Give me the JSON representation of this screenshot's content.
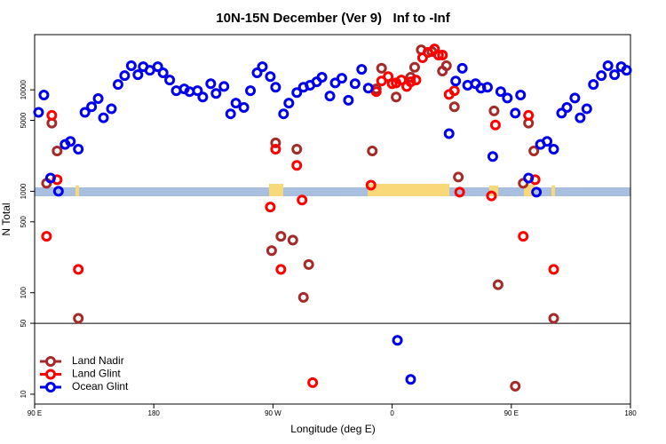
{
  "chart_data": {
    "type": "scatter",
    "title": "10N-15N December (Ver 9)   Inf to -Inf",
    "x_label": "Longitude (deg E)",
    "y_label": "N Total",
    "log_y": true,
    "xlim": [
      90,
      540
    ],
    "xticks": [
      {
        "value": 90,
        "label": "90 E"
      },
      {
        "value": 180,
        "label": "180"
      },
      {
        "value": 270,
        "label": "90 W"
      },
      {
        "value": 360,
        "label": "0"
      },
      {
        "value": 450,
        "label": "90 E"
      },
      {
        "value": 540,
        "label": "180"
      }
    ],
    "ylim": [
      8,
      35000
    ],
    "yticks": [
      10,
      50,
      100,
      500,
      1000,
      5000,
      10000
    ],
    "hline": 50,
    "legend_position": "lower left",
    "series": [
      {
        "name": "Land Nadir",
        "color": "#a52a2a",
        "x": [
          99,
          103,
          107,
          123,
          269,
          272,
          276,
          285,
          288,
          293,
          297,
          345,
          348,
          352,
          363,
          374,
          377,
          382,
          390,
          398,
          401,
          407,
          410,
          437,
          440,
          453,
          459,
          463,
          467,
          482
        ],
        "values": [
          1200,
          4700,
          2500,
          56,
          260,
          3000,
          360,
          330,
          2600,
          90,
          190,
          2500,
          10200,
          16300,
          8500,
          13300,
          16700,
          24800,
          23800,
          15300,
          17300,
          6800,
          1380,
          6200,
          120,
          12,
          1200,
          4700,
          2500,
          56
        ]
      },
      {
        "name": "Land Glint",
        "color": "#ff0000",
        "x": [
          99,
          103,
          107,
          123,
          268,
          272,
          276,
          288,
          292,
          300,
          344,
          348,
          352,
          357,
          360,
          363,
          367,
          371,
          374,
          378,
          383,
          387,
          392,
          395,
          398,
          403,
          407,
          411,
          435,
          438,
          459,
          463,
          468,
          482
        ],
        "values": [
          360,
          5600,
          1300,
          170,
          700,
          2600,
          170,
          1800,
          820,
          13,
          1150,
          9600,
          12200,
          13500,
          11500,
          11700,
          12500,
          10800,
          12000,
          12500,
          20700,
          23400,
          25300,
          22000,
          22000,
          9000,
          9800,
          980,
          900,
          4500,
          360,
          5600,
          1300,
          170
        ]
      },
      {
        "name": "Ocean Glint",
        "color": "#0000ee",
        "x": [
          93,
          97,
          102,
          108,
          113,
          117,
          123,
          128,
          133,
          138,
          142,
          148,
          153,
          158,
          163,
          168,
          172,
          177,
          183,
          187,
          192,
          197,
          203,
          207,
          213,
          217,
          223,
          227,
          233,
          238,
          242,
          248,
          253,
          258,
          262,
          268,
          272,
          278,
          282,
          288,
          293,
          298,
          303,
          307,
          313,
          317,
          322,
          327,
          332,
          337,
          342,
          364,
          374,
          403,
          408,
          413,
          417,
          423,
          427,
          432,
          436,
          442,
          447,
          453,
          457,
          463,
          469,
          472,
          477,
          482,
          488,
          492,
          498,
          502,
          507,
          512,
          518,
          523,
          528,
          533,
          537
        ],
        "values": [
          6000,
          8900,
          1350,
          1000,
          2900,
          3100,
          2600,
          6000,
          6800,
          8200,
          5300,
          6500,
          11300,
          13800,
          17300,
          14100,
          16900,
          15600,
          16900,
          14700,
          12500,
          9800,
          10200,
          9600,
          9800,
          8500,
          11500,
          9200,
          10800,
          5800,
          7400,
          6700,
          9800,
          14700,
          16900,
          13500,
          10600,
          5800,
          7400,
          9400,
          10600,
          11100,
          12000,
          13300,
          8700,
          11700,
          13000,
          7900,
          11500,
          15900,
          10400,
          34,
          14,
          3700,
          12200,
          16300,
          11100,
          11500,
          10400,
          10600,
          2200,
          9600,
          8300,
          5900,
          8900,
          1350,
          980,
          2900,
          3100,
          2600,
          5900,
          6700,
          8300,
          5300,
          6500,
          11300,
          13800,
          17300,
          14100,
          16900,
          15600
        ]
      }
    ]
  }
}
